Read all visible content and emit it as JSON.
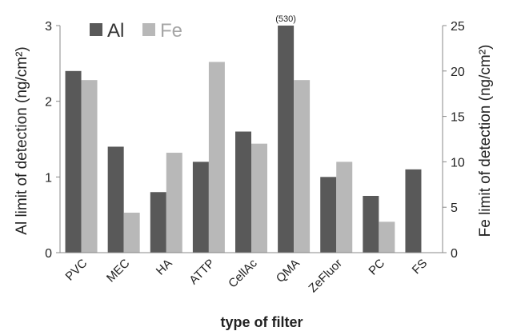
{
  "chart_data": {
    "type": "bar",
    "categories": [
      "PVC",
      "MEC",
      "HA",
      "ATTP",
      "CellAc",
      "QMA",
      "ZeFluor",
      "PC",
      "FS"
    ],
    "series": [
      {
        "name": "Al",
        "axis": "left",
        "color": "#595959",
        "values": [
          2.4,
          1.4,
          0.8,
          1.2,
          1.6,
          3.0,
          1.0,
          0.75,
          1.1
        ]
      },
      {
        "name": "Fe",
        "axis": "right",
        "color": "#b8b8b8",
        "values": [
          19,
          4.4,
          11,
          21,
          12,
          19,
          10,
          3.4,
          null
        ]
      }
    ],
    "xlabel": "type of filter",
    "ylabel_left": "Al limit of detection (ng/cm²)",
    "ylabel_right": "Fe limit of detection (ng/cm²)",
    "ylim_left": [
      0,
      3
    ],
    "ylim_right": [
      0,
      25
    ],
    "yticks_left": [
      "0",
      "1",
      "2",
      "3"
    ],
    "yticks_right": [
      "0",
      "5",
      "10",
      "15",
      "20",
      "25"
    ],
    "annotations": [
      {
        "category": "QMA",
        "series": "Al",
        "text": "(530)"
      }
    ],
    "legend_position": "top-left",
    "grid": false
  }
}
